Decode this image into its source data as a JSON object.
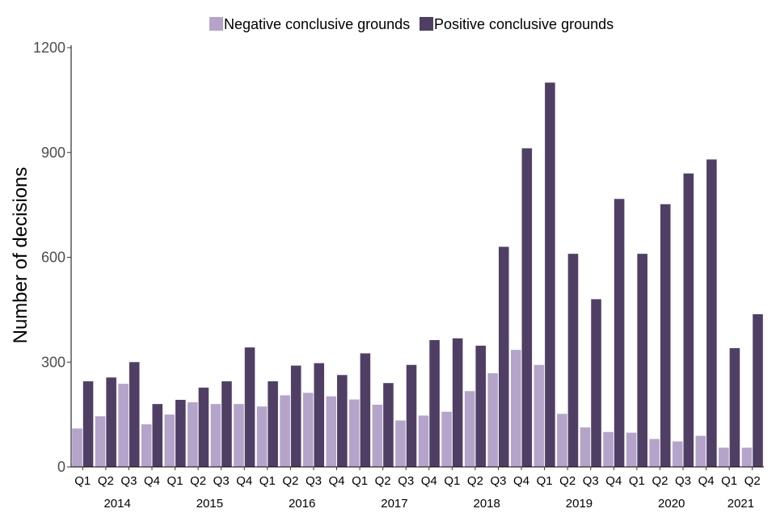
{
  "chart_data": {
    "type": "bar",
    "title": "",
    "xlabel": "",
    "ylabel": "Number of decisions",
    "ylim": [
      0,
      1200
    ],
    "yticks": [
      0,
      300,
      600,
      900,
      1200
    ],
    "grid": false,
    "legend_position": "top",
    "categories": [
      "Q1",
      "Q2",
      "Q3",
      "Q4",
      "Q1",
      "Q2",
      "Q3",
      "Q4",
      "Q1",
      "Q2",
      "Q3",
      "Q4",
      "Q1",
      "Q2",
      "Q3",
      "Q4",
      "Q1",
      "Q2",
      "Q3",
      "Q4",
      "Q1",
      "Q2",
      "Q3",
      "Q4",
      "Q1",
      "Q2",
      "Q3",
      "Q4",
      "Q1",
      "Q2"
    ],
    "years": [
      {
        "label": "2014",
        "start": 0,
        "count": 4
      },
      {
        "label": "2015",
        "start": 4,
        "count": 4
      },
      {
        "label": "2016",
        "start": 8,
        "count": 4
      },
      {
        "label": "2017",
        "start": 12,
        "count": 4
      },
      {
        "label": "2018",
        "start": 16,
        "count": 4
      },
      {
        "label": "2019",
        "start": 20,
        "count": 4
      },
      {
        "label": "2020",
        "start": 24,
        "count": 4
      },
      {
        "label": "2021",
        "start": 28,
        "count": 2
      }
    ],
    "series": [
      {
        "name": "Negative conclusive grounds",
        "color": "#b4a4ca",
        "values": [
          110,
          145,
          238,
          122,
          150,
          185,
          180,
          180,
          173,
          205,
          212,
          202,
          193,
          178,
          133,
          147,
          158,
          217,
          268,
          335,
          292,
          152,
          113,
          100,
          98,
          80,
          73,
          89,
          55,
          55
        ]
      },
      {
        "name": "Positive conclusive grounds",
        "color": "#503f65",
        "values": [
          245,
          256,
          300,
          180,
          192,
          227,
          245,
          342,
          245,
          290,
          297,
          263,
          325,
          240,
          292,
          363,
          368,
          347,
          630,
          912,
          1100,
          610,
          480,
          767,
          610,
          752,
          840,
          880,
          340,
          437
        ]
      }
    ]
  }
}
